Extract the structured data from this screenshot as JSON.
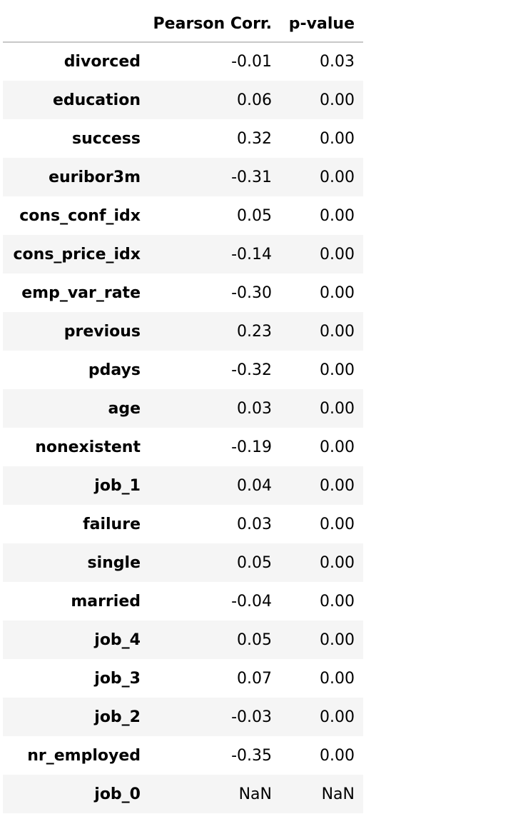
{
  "table": {
    "columns": {
      "index": "",
      "pearson": "Pearson Corr.",
      "pvalue": "p-value"
    },
    "rows": [
      {
        "label": "divorced",
        "pearson": "-0.01",
        "pvalue": "0.03"
      },
      {
        "label": "education",
        "pearson": "0.06",
        "pvalue": "0.00"
      },
      {
        "label": "success",
        "pearson": "0.32",
        "pvalue": "0.00"
      },
      {
        "label": "euribor3m",
        "pearson": "-0.31",
        "pvalue": "0.00"
      },
      {
        "label": "cons_conf_idx",
        "pearson": "0.05",
        "pvalue": "0.00"
      },
      {
        "label": "cons_price_idx",
        "pearson": "-0.14",
        "pvalue": "0.00"
      },
      {
        "label": "emp_var_rate",
        "pearson": "-0.30",
        "pvalue": "0.00"
      },
      {
        "label": "previous",
        "pearson": "0.23",
        "pvalue": "0.00"
      },
      {
        "label": "pdays",
        "pearson": "-0.32",
        "pvalue": "0.00"
      },
      {
        "label": "age",
        "pearson": "0.03",
        "pvalue": "0.00"
      },
      {
        "label": "nonexistent",
        "pearson": "-0.19",
        "pvalue": "0.00"
      },
      {
        "label": "job_1",
        "pearson": "0.04",
        "pvalue": "0.00"
      },
      {
        "label": "failure",
        "pearson": "0.03",
        "pvalue": "0.00"
      },
      {
        "label": "single",
        "pearson": "0.05",
        "pvalue": "0.00"
      },
      {
        "label": "married",
        "pearson": "-0.04",
        "pvalue": "0.00"
      },
      {
        "label": "job_4",
        "pearson": "0.05",
        "pvalue": "0.00"
      },
      {
        "label": "job_3",
        "pearson": "0.07",
        "pvalue": "0.00"
      },
      {
        "label": "job_2",
        "pearson": "-0.03",
        "pvalue": "0.00"
      },
      {
        "label": "nr_employed",
        "pearson": "-0.35",
        "pvalue": "0.00"
      },
      {
        "label": "job_0",
        "pearson": "NaN",
        "pvalue": "NaN"
      }
    ]
  }
}
